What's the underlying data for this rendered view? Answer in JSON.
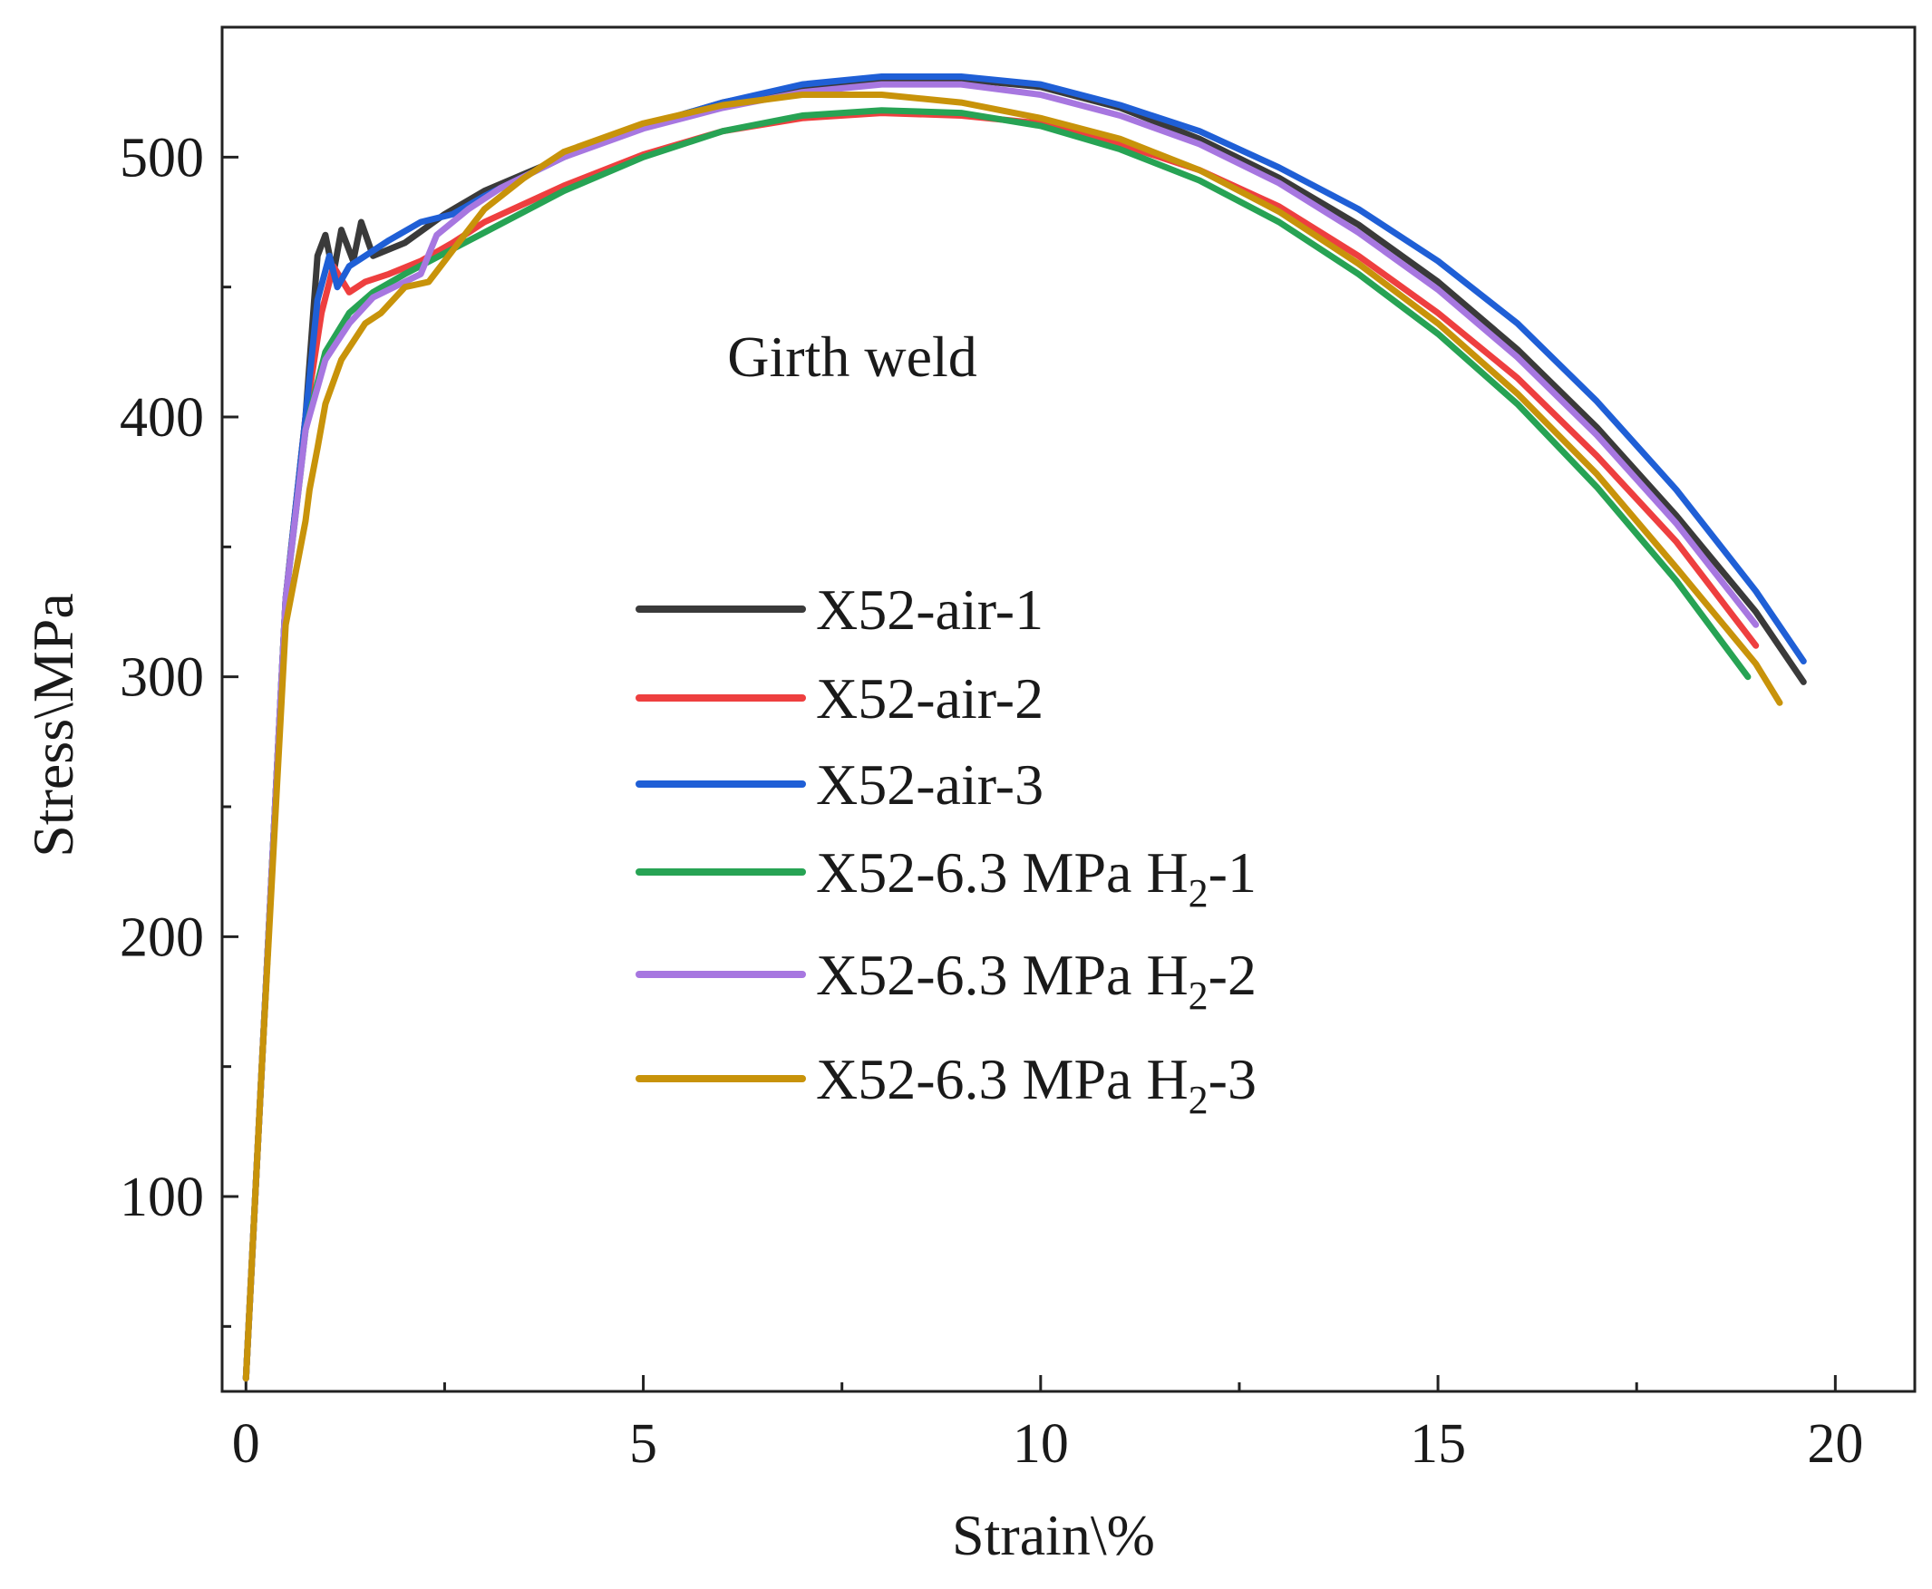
{
  "chart_data": {
    "type": "line",
    "title": "",
    "annotation": "Girth weld",
    "xlabel": "Strain\\%",
    "ylabel": "Stress\\MPa",
    "xlim": [
      -0.3,
      21
    ],
    "ylim": [
      25,
      550
    ],
    "xticks": [
      0,
      5,
      10,
      15,
      20
    ],
    "xtick_labels": [
      "0",
      "5",
      "10",
      "15",
      "20"
    ],
    "yticks": [
      100,
      200,
      300,
      400,
      500
    ],
    "ytick_labels": [
      "100",
      "200",
      "300",
      "400",
      "500"
    ],
    "legend_position": "center",
    "series": [
      {
        "name": "X52-air-1",
        "label_main": "X52-air-1",
        "label_sub": "",
        "label_tail": "",
        "color": "#3a3a3a",
        "x": [
          0.0,
          0.2,
          0.5,
          0.75,
          0.9,
          1.0,
          1.1,
          1.2,
          1.35,
          1.45,
          1.6,
          2.0,
          2.5,
          3.0,
          4.0,
          5.0,
          6.0,
          7.0,
          8.0,
          9.0,
          10.0,
          11.0,
          12.0,
          13.0,
          14.0,
          15.0,
          16.0,
          17.0,
          18.0,
          19.0,
          19.6
        ],
        "y": [
          30,
          150,
          330,
          400,
          462,
          470,
          455,
          472,
          460,
          475,
          462,
          467,
          478,
          487,
          500,
          512,
          521,
          527,
          530,
          530,
          527,
          519,
          507,
          492,
          474,
          452,
          426,
          396,
          362,
          325,
          298
        ]
      },
      {
        "name": "X52-air-2",
        "label_main": "X52-air-2",
        "label_sub": "",
        "label_tail": "",
        "color": "#ee3f3f",
        "x": [
          0.0,
          0.2,
          0.5,
          0.75,
          0.95,
          1.1,
          1.3,
          1.5,
          1.8,
          2.2,
          2.6,
          3.0,
          4.0,
          5.0,
          6.0,
          7.0,
          8.0,
          9.0,
          10.0,
          11.0,
          12.0,
          13.0,
          14.0,
          15.0,
          16.0,
          17.0,
          18.0,
          19.0
        ],
        "y": [
          30,
          150,
          330,
          400,
          440,
          458,
          448,
          452,
          455,
          460,
          467,
          475,
          489,
          501,
          510,
          515,
          517,
          516,
          513,
          505,
          495,
          481,
          462,
          440,
          415,
          385,
          352,
          312
        ]
      },
      {
        "name": "X52-air-3",
        "label_main": "X52-air-3",
        "label_sub": "",
        "label_tail": "",
        "color": "#1f5fd6",
        "x": [
          0.0,
          0.2,
          0.5,
          0.75,
          0.9,
          1.05,
          1.15,
          1.3,
          1.5,
          1.8,
          2.2,
          2.6,
          3.0,
          4.0,
          5.0,
          6.0,
          7.0,
          8.0,
          9.0,
          10.0,
          11.0,
          12.0,
          13.0,
          14.0,
          15.0,
          16.0,
          17.0,
          18.0,
          19.0,
          19.6
        ],
        "y": [
          30,
          150,
          330,
          400,
          445,
          462,
          450,
          458,
          462,
          468,
          475,
          478,
          485,
          500,
          512,
          521,
          528,
          531,
          531,
          528,
          520,
          510,
          496,
          480,
          460,
          436,
          406,
          372,
          333,
          306
        ]
      },
      {
        "name": "X52-6.3 MPa H2-1",
        "label_main": "X52-6.3 MPa H",
        "label_sub": "2",
        "label_tail": "-1",
        "color": "#27a354",
        "x": [
          0.0,
          0.2,
          0.5,
          0.75,
          1.0,
          1.3,
          1.6,
          2.0,
          2.5,
          3.0,
          4.0,
          5.0,
          6.0,
          7.0,
          8.0,
          9.0,
          10.0,
          11.0,
          12.0,
          13.0,
          14.0,
          15.0,
          16.0,
          17.0,
          18.0,
          18.9
        ],
        "y": [
          30,
          150,
          330,
          395,
          425,
          440,
          448,
          455,
          463,
          471,
          487,
          500,
          510,
          516,
          518,
          517,
          512,
          503,
          491,
          475,
          455,
          432,
          405,
          373,
          337,
          300
        ]
      },
      {
        "name": "X52-6.3 MPa H2-2",
        "label_main": "X52-6.3 MPa H",
        "label_sub": "2",
        "label_tail": "-2",
        "color": "#a777e0",
        "x": [
          0.0,
          0.2,
          0.5,
          0.75,
          1.0,
          1.3,
          1.6,
          2.0,
          2.2,
          2.4,
          2.8,
          3.2,
          4.0,
          5.0,
          6.0,
          7.0,
          8.0,
          9.0,
          10.0,
          11.0,
          12.0,
          13.0,
          14.0,
          15.0,
          16.0,
          17.0,
          18.0,
          19.0
        ],
        "y": [
          30,
          150,
          330,
          395,
          422,
          436,
          446,
          452,
          455,
          470,
          480,
          488,
          500,
          511,
          519,
          525,
          528,
          528,
          524,
          516,
          505,
          490,
          471,
          449,
          423,
          393,
          359,
          320
        ]
      },
      {
        "name": "X52-6.3 MPa H2-3",
        "label_main": "X52-6.3 MPa H",
        "label_sub": "2",
        "label_tail": "-3",
        "color": "#c8930a",
        "x": [
          0.0,
          0.2,
          0.5,
          0.75,
          0.8,
          0.9,
          1.0,
          1.2,
          1.5,
          1.7,
          2.0,
          2.3,
          2.5,
          2.8,
          3.0,
          3.5,
          4.0,
          5.0,
          6.0,
          7.0,
          8.0,
          9.0,
          10.0,
          11.0,
          12.0,
          13.0,
          14.0,
          15.0,
          16.0,
          17.0,
          18.0,
          19.0,
          19.3
        ],
        "y": [
          30,
          150,
          320,
          360,
          372,
          388,
          405,
          422,
          436,
          440,
          450,
          452,
          460,
          472,
          480,
          492,
          502,
          513,
          520,
          524,
          524,
          521,
          515,
          507,
          495,
          479,
          459,
          436,
          409,
          378,
          342,
          305,
          290
        ]
      }
    ]
  }
}
